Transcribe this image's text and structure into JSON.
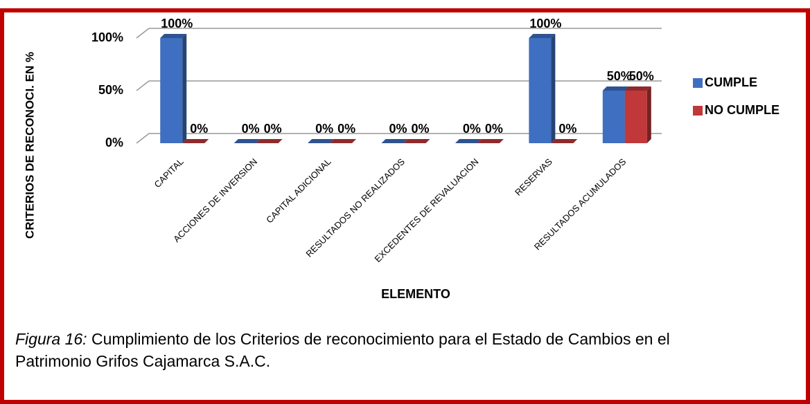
{
  "chart_data": {
    "type": "bar",
    "y_label": "CRITERIOS DE RECONOCI. EN %",
    "x_label": "ELEMENTO",
    "categories": [
      "CAPITAL",
      "ACCIONES DE INVERSION",
      "CAPITAL ADICIONAL",
      "RESULTADOS NO REALIZADOS",
      "EXCEDENTES DE REVALUACION",
      "RESERVAS",
      "RESULTADOS ACUMULADOS"
    ],
    "series": [
      {
        "name": "CUMPLE",
        "color": "#3f6fc0",
        "values": [
          100,
          0,
          0,
          0,
          0,
          100,
          50
        ],
        "value_labels": [
          "100%",
          "0%",
          "0%",
          "0%",
          "0%",
          "100%",
          "50%"
        ]
      },
      {
        "name": "NO CUMPLE",
        "color": "#c0383a",
        "values": [
          0,
          0,
          0,
          0,
          0,
          0,
          50
        ],
        "value_labels": [
          "0%",
          "0%",
          "0%",
          "0%",
          "0%",
          "0%",
          "50%"
        ]
      }
    ],
    "ylim": [
      0,
      100
    ],
    "yticks": [
      {
        "value": 0,
        "label": "0%"
      },
      {
        "value": 50,
        "label": "50%"
      },
      {
        "value": 100,
        "label": "100%"
      }
    ],
    "grid": true,
    "legend": "right"
  },
  "caption": {
    "label": "Figura 16:",
    "text": "Cumplimiento de los Criterios de reconocimiento para el Estado de Cambios en el Patrimonio Grifos Cajamarca S.A.C."
  }
}
